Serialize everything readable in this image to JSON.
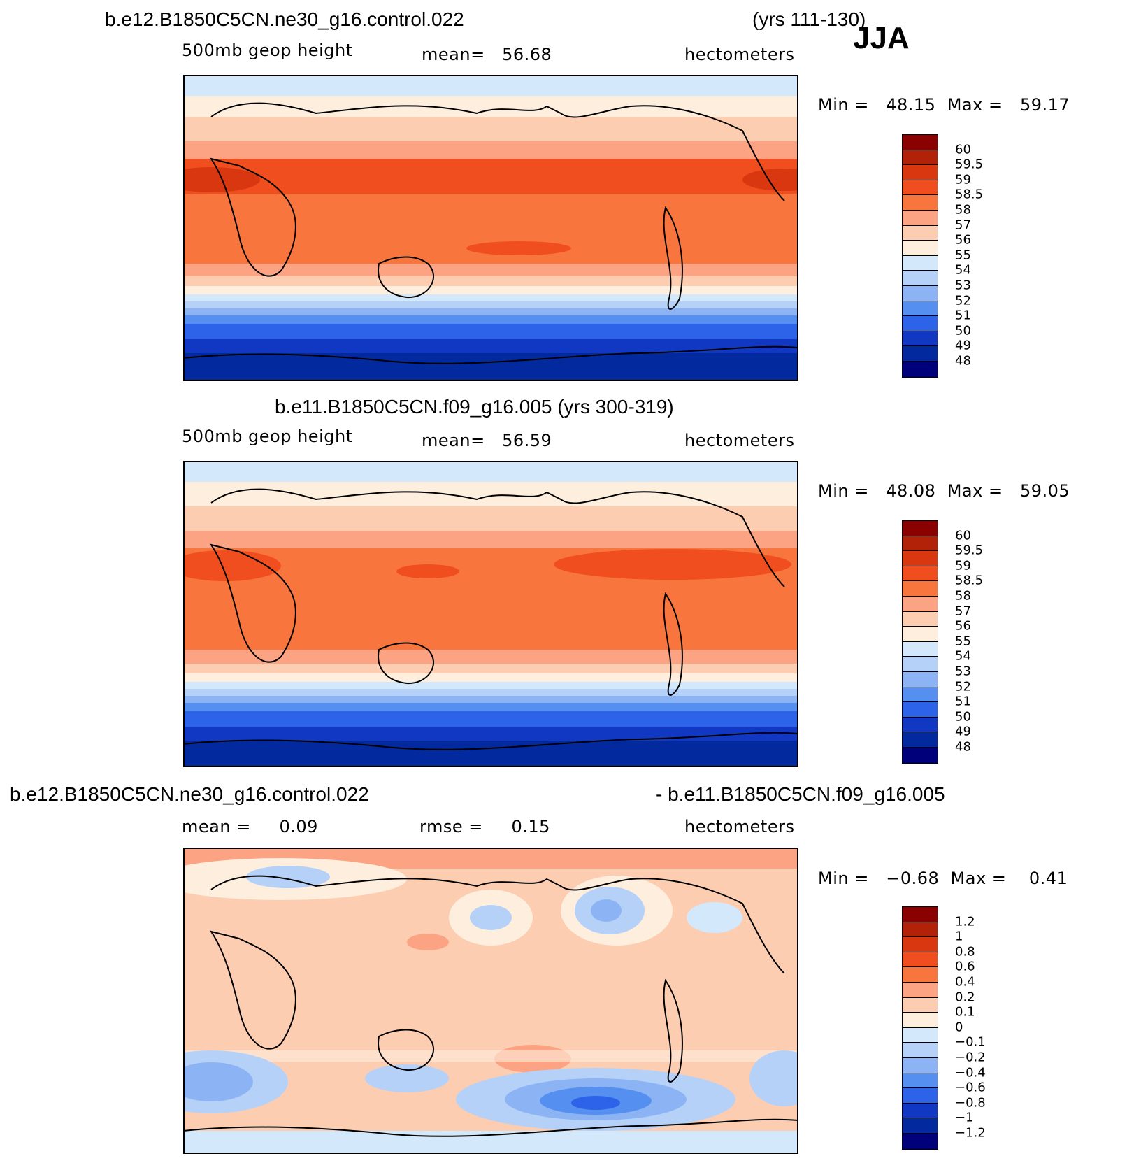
{
  "header": {
    "season": "JJA"
  },
  "panels": [
    {
      "title_left": "b.e12.B1850C5CN.ne30_g16.control.022",
      "title_right": "(yrs 111-130)",
      "variable": "500mb  geop  height",
      "mean_label": "mean=",
      "mean_value": "56.68",
      "units": "hectometers",
      "min_label": "Min =",
      "min_value": "48.15",
      "max_label": "Max =",
      "max_value": "59.17",
      "levels": [
        "60",
        "59.5",
        "59",
        "58.5",
        "58",
        "57",
        "56",
        "55",
        "54",
        "53",
        "52",
        "51",
        "50",
        "49",
        "48"
      ]
    },
    {
      "title_center": "b.e11.B1850C5CN.f09_g16.005 (yrs 300-319)",
      "variable": "500mb  geop  height",
      "mean_label": "mean=",
      "mean_value": "56.59",
      "units": "hectometers",
      "min_label": "Min =",
      "min_value": "48.08",
      "max_label": "Max =",
      "max_value": "59.05",
      "levels": [
        "60",
        "59.5",
        "59",
        "58.5",
        "58",
        "57",
        "56",
        "55",
        "54",
        "53",
        "52",
        "51",
        "50",
        "49",
        "48"
      ]
    },
    {
      "title_left": "b.e12.B1850C5CN.ne30_g16.control.022",
      "title_right": "- b.e11.B1850C5CN.f09_g16.005",
      "mean_label": "mean =",
      "mean_value": "0.09",
      "rmse_label": "rmse =",
      "rmse_value": "0.15",
      "units": "hectometers",
      "min_label": "Min =",
      "min_value": "−0.68",
      "max_label": "Max =",
      "max_value": "0.41",
      "levels": [
        "1.2",
        "1",
        "0.8",
        "0.6",
        "0.4",
        "0.2",
        "0.1",
        "0",
        "−0.1",
        "−0.2",
        "−0.4",
        "−0.6",
        "−0.8",
        "−1",
        "−1.2"
      ]
    }
  ],
  "colors": {
    "scale": [
      "#8b0000",
      "#b22208",
      "#d9370f",
      "#f04e1e",
      "#f8763e",
      "#fca383",
      "#fdcdb2",
      "#fdeede",
      "#d3e8fb",
      "#b5d1f8",
      "#8cb4f5",
      "#5590f0",
      "#2c63e8",
      "#1038c2",
      "#022a9e",
      "#00007a"
    ]
  }
}
